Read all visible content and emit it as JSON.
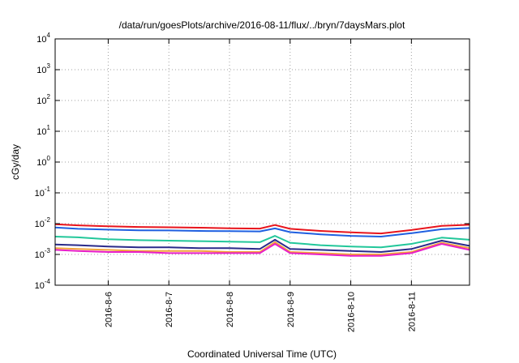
{
  "chart_data": {
    "type": "line",
    "title": "/data/run/goesPlots/archive/2016-08-11/flux/../bryn/7daysMars.plot",
    "xlabel": "Coordinated Universal Time (UTC)",
    "ylabel": "cGy/day",
    "yscale": "log",
    "xlim": [
      "2016-08-05T03:00",
      "2016-08-11T23:00"
    ],
    "ylim": [
      0.0001,
      10000
    ],
    "yticks": [
      {
        "base": "10",
        "exp": "-4"
      },
      {
        "base": "10",
        "exp": "-3"
      },
      {
        "base": "10",
        "exp": "-2"
      },
      {
        "base": "10",
        "exp": "-1"
      },
      {
        "base": "10",
        "exp": "0"
      },
      {
        "base": "10",
        "exp": "1"
      },
      {
        "base": "10",
        "exp": "2"
      },
      {
        "base": "10",
        "exp": "3"
      },
      {
        "base": "10",
        "exp": "4"
      }
    ],
    "xticks": [
      {
        "label": "2016-8-6",
        "t": "2016-08-06T00:00"
      },
      {
        "label": "2016-8-7",
        "t": "2016-08-07T00:00"
      },
      {
        "label": "2016-8-8",
        "t": "2016-08-08T00:00"
      },
      {
        "label": "2016-8-9",
        "t": "2016-08-09T00:00"
      },
      {
        "label": "2016-8-10",
        "t": "2016-08-10T00:00"
      },
      {
        "label": "2016-8-11",
        "t": "2016-08-11T00:00"
      }
    ],
    "grid": true,
    "x": [
      "2016-08-05T03:00",
      "2016-08-05T12:00",
      "2016-08-06T00:00",
      "2016-08-06T12:00",
      "2016-08-07T00:00",
      "2016-08-07T12:00",
      "2016-08-08T00:00",
      "2016-08-08T12:00",
      "2016-08-08T18:00",
      "2016-08-09T00:00",
      "2016-08-09T12:00",
      "2016-08-10T00:00",
      "2016-08-10T12:00",
      "2016-08-11T00:00",
      "2016-08-11T12:00",
      "2016-08-11T23:00"
    ],
    "series": [
      {
        "color": "#e8141c",
        "values": [
          0.0095,
          0.0088,
          0.0082,
          0.0078,
          0.0076,
          0.0074,
          0.0071,
          0.0069,
          0.009,
          0.0068,
          0.0058,
          0.0052,
          0.0048,
          0.0062,
          0.0085,
          0.0092
        ]
      },
      {
        "color": "#1f5fe0",
        "values": [
          0.0075,
          0.0068,
          0.0064,
          0.0061,
          0.006,
          0.0058,
          0.0057,
          0.0056,
          0.007,
          0.0053,
          0.0045,
          0.004,
          0.0038,
          0.0049,
          0.0066,
          0.0072
        ]
      },
      {
        "color": "#22c79a",
        "values": [
          0.0038,
          0.0036,
          0.0031,
          0.0029,
          0.0028,
          0.0027,
          0.0026,
          0.0025,
          0.004,
          0.0024,
          0.002,
          0.0018,
          0.0017,
          0.0022,
          0.0035,
          0.003
        ]
      },
      {
        "color": "#2a2a8a",
        "values": [
          0.0021,
          0.002,
          0.0018,
          0.0017,
          0.0017,
          0.0016,
          0.0016,
          0.0015,
          0.003,
          0.0015,
          0.0014,
          0.0013,
          0.0012,
          0.0015,
          0.0028,
          0.0019
        ]
      },
      {
        "color": "#f2a33a",
        "values": [
          0.0016,
          0.0015,
          0.0014,
          0.0013,
          0.0013,
          0.0013,
          0.0012,
          0.0012,
          0.0025,
          0.0012,
          0.0011,
          0.001,
          0.001,
          0.0012,
          0.0024,
          0.0016
        ]
      },
      {
        "color": "#e81ec8",
        "values": [
          0.0014,
          0.0013,
          0.0012,
          0.0012,
          0.0011,
          0.0011,
          0.0011,
          0.0011,
          0.0022,
          0.0011,
          0.001,
          0.0009,
          0.0009,
          0.0011,
          0.0022,
          0.0014
        ]
      }
    ]
  }
}
